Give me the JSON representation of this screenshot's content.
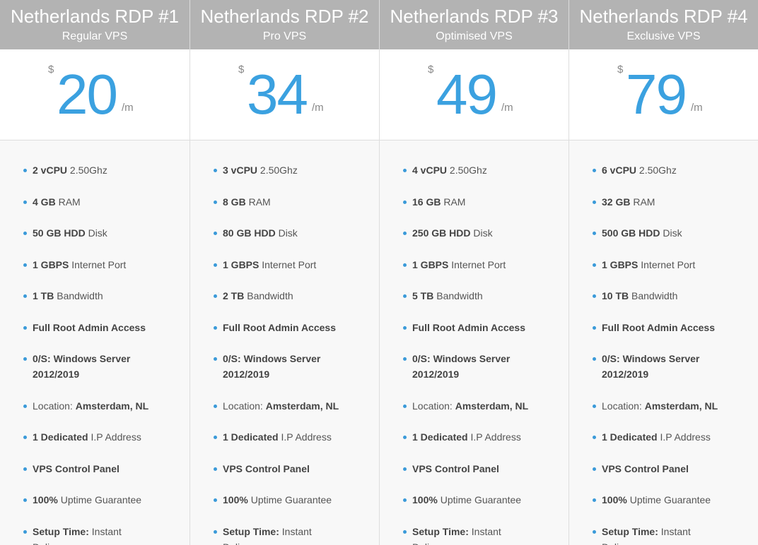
{
  "plans": [
    {
      "title": "Netherlands RDP #1",
      "subtitle": "Regular VPS",
      "currency": "$",
      "price": 20,
      "period": "/m",
      "features": [
        [
          {
            "text": "2 vCPU",
            "bold": true
          },
          {
            "text": "2.50Ghz",
            "bold": false
          }
        ],
        [
          {
            "text": "4 GB",
            "bold": true
          },
          {
            "text": "RAM",
            "bold": false
          }
        ],
        [
          {
            "text": "50 GB HDD",
            "bold": true
          },
          {
            "text": "Disk",
            "bold": false
          }
        ],
        [
          {
            "text": "1 GBPS",
            "bold": true
          },
          {
            "text": "Internet Port",
            "bold": false
          }
        ],
        [
          {
            "text": "1 TB",
            "bold": true
          },
          {
            "text": "Bandwidth",
            "bold": false
          }
        ],
        [
          {
            "text": "Full Root Admin Access",
            "bold": true
          }
        ],
        [
          {
            "text": "0/S: Windows Server 2012/2019",
            "bold": true
          }
        ],
        [
          {
            "text": "Location:",
            "bold": false
          },
          {
            "text": "Amsterdam, NL",
            "bold": true
          }
        ],
        [
          {
            "text": "1 Dedicated",
            "bold": true
          },
          {
            "text": "I.P Address",
            "bold": false
          }
        ],
        [
          {
            "text": "VPS Control Panel",
            "bold": true
          }
        ],
        [
          {
            "text": "100%",
            "bold": true
          },
          {
            "text": "Uptime Guarantee",
            "bold": false
          }
        ],
        [
          {
            "text": "Setup Time:",
            "bold": true
          },
          {
            "text": "Instant Delivery",
            "bold": false
          }
        ]
      ]
    },
    {
      "title": "Netherlands RDP #2",
      "subtitle": "Pro VPS",
      "currency": "$",
      "price": 34,
      "period": "/m",
      "features": [
        [
          {
            "text": "3 vCPU",
            "bold": true
          },
          {
            "text": "2.50Ghz",
            "bold": false
          }
        ],
        [
          {
            "text": "8 GB",
            "bold": true
          },
          {
            "text": "RAM",
            "bold": false
          }
        ],
        [
          {
            "text": "80 GB HDD",
            "bold": true
          },
          {
            "text": "Disk",
            "bold": false
          }
        ],
        [
          {
            "text": "1 GBPS",
            "bold": true
          },
          {
            "text": "Internet Port",
            "bold": false
          }
        ],
        [
          {
            "text": "2 TB",
            "bold": true
          },
          {
            "text": "Bandwidth",
            "bold": false
          }
        ],
        [
          {
            "text": "Full Root Admin Access",
            "bold": true
          }
        ],
        [
          {
            "text": "0/S: Windows Server 2012/2019",
            "bold": true
          }
        ],
        [
          {
            "text": "Location:",
            "bold": false
          },
          {
            "text": "Amsterdam, NL",
            "bold": true
          }
        ],
        [
          {
            "text": "1 Dedicated",
            "bold": true
          },
          {
            "text": "I.P Address",
            "bold": false
          }
        ],
        [
          {
            "text": "VPS Control Panel",
            "bold": true
          }
        ],
        [
          {
            "text": "100%",
            "bold": true
          },
          {
            "text": "Uptime Guarantee",
            "bold": false
          }
        ],
        [
          {
            "text": "Setup Time:",
            "bold": true
          },
          {
            "text": "Instant Delivery",
            "bold": false
          }
        ]
      ]
    },
    {
      "title": "Netherlands RDP #3",
      "subtitle": "Optimised VPS",
      "currency": "$",
      "price": 49,
      "period": "/m",
      "features": [
        [
          {
            "text": "4 vCPU",
            "bold": true
          },
          {
            "text": "2.50Ghz",
            "bold": false
          }
        ],
        [
          {
            "text": "16 GB",
            "bold": true
          },
          {
            "text": "RAM",
            "bold": false
          }
        ],
        [
          {
            "text": "250 GB HDD",
            "bold": true
          },
          {
            "text": "Disk",
            "bold": false
          }
        ],
        [
          {
            "text": "1 GBPS",
            "bold": true
          },
          {
            "text": "Internet Port",
            "bold": false
          }
        ],
        [
          {
            "text": "5 TB",
            "bold": true
          },
          {
            "text": "Bandwidth",
            "bold": false
          }
        ],
        [
          {
            "text": "Full Root Admin Access",
            "bold": true
          }
        ],
        [
          {
            "text": "0/S: Windows Server 2012/2019",
            "bold": true
          }
        ],
        [
          {
            "text": "Location:",
            "bold": false
          },
          {
            "text": "Amsterdam, NL",
            "bold": true
          }
        ],
        [
          {
            "text": "1 Dedicated",
            "bold": true
          },
          {
            "text": "I.P Address",
            "bold": false
          }
        ],
        [
          {
            "text": "VPS Control Panel",
            "bold": true
          }
        ],
        [
          {
            "text": "100%",
            "bold": true
          },
          {
            "text": "Uptime Guarantee",
            "bold": false
          }
        ],
        [
          {
            "text": "Setup Time:",
            "bold": true
          },
          {
            "text": "Instant Delivery",
            "bold": false
          }
        ]
      ]
    },
    {
      "title": "Netherlands RDP #4",
      "subtitle": "Exclusive VPS",
      "currency": "$",
      "price": 79,
      "period": "/m",
      "features": [
        [
          {
            "text": "6 vCPU",
            "bold": true
          },
          {
            "text": "2.50Ghz",
            "bold": false
          }
        ],
        [
          {
            "text": "32 GB",
            "bold": true
          },
          {
            "text": "RAM",
            "bold": false
          }
        ],
        [
          {
            "text": "500 GB HDD",
            "bold": true
          },
          {
            "text": "Disk",
            "bold": false
          }
        ],
        [
          {
            "text": "1 GBPS",
            "bold": true
          },
          {
            "text": "Internet Port",
            "bold": false
          }
        ],
        [
          {
            "text": "10 TB",
            "bold": true
          },
          {
            "text": "Bandwidth",
            "bold": false
          }
        ],
        [
          {
            "text": "Full Root Admin Access",
            "bold": true
          }
        ],
        [
          {
            "text": "0/S: Windows Server 2012/2019",
            "bold": true
          }
        ],
        [
          {
            "text": "Location:",
            "bold": false
          },
          {
            "text": "Amsterdam, NL",
            "bold": true
          }
        ],
        [
          {
            "text": "1 Dedicated",
            "bold": true
          },
          {
            "text": "I.P Address",
            "bold": false
          }
        ],
        [
          {
            "text": "VPS Control Panel",
            "bold": true
          }
        ],
        [
          {
            "text": "100%",
            "bold": true
          },
          {
            "text": "Uptime Guarantee",
            "bold": false
          }
        ],
        [
          {
            "text": "Setup Time:",
            "bold": true
          },
          {
            "text": "Instant Delivery",
            "bold": false
          }
        ]
      ]
    }
  ]
}
